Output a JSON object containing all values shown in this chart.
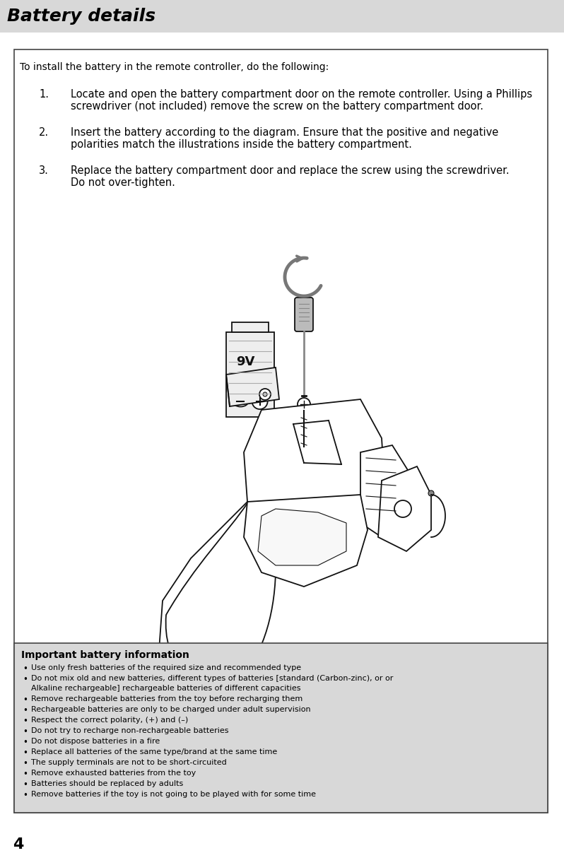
{
  "title": "Battery details",
  "title_fontsize": 18,
  "bg_color": "#d8d8d8",
  "header_color": "#d0d0d0",
  "white": "#ffffff",
  "black": "#000000",
  "page_number": "4",
  "intro_text": "To install the battery in the remote controller, do the following:",
  "steps": [
    {
      "number": "1.",
      "text": "Locate and open the battery compartment door on the remote controller. Using a Phillips\nscrewdriver (not included) remove the screw on the battery compartment door."
    },
    {
      "number": "2.",
      "text": "Insert the battery according to the diagram. Ensure that the positive and negative\npolarities match the illustrations inside the battery compartment."
    },
    {
      "number": "3.",
      "text": "Replace the battery compartment door and replace the screw using the screwdriver.\nDo not over-tighten."
    }
  ],
  "important_title": "Important battery information",
  "bullet_points": [
    "Use only fresh batteries of the required size and recommended type",
    "Do not mix old and new batteries, different types of batteries [standard (Carbon-zinc), Alkaline or rechargeable] or rechargeable batteries of different capacities",
    "Remove rechargeable batteries from the toy before recharging them",
    "Rechargeable batteries are only to be charged under adult supervision",
    "Respect the correct polarity, (+) and (–)",
    "Do not try to recharge non-rechargeable batteries",
    "Do not dispose batteries in a fire",
    "Replace all batteries of the same type/brand at the same time",
    "The supply terminals are not to be short-circuited",
    "Remove exhausted batteries from the toy",
    "Batteries should be replaced by adults",
    "Remove batteries if the toy is not going to be played with for some time"
  ],
  "battery_label": "9V"
}
